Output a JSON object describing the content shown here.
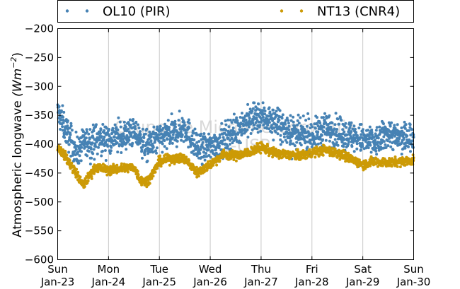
{
  "chart_data": {
    "type": "scatter",
    "ylabel_prefix": "Atmospheric longwave ",
    "ylabel_unit": "(Wm",
    "ylabel_exp": "−2",
    "ylabel_close": ")",
    "ylim": [
      -600,
      -200
    ],
    "yticks": [
      -200,
      -250,
      -300,
      -350,
      -400,
      -450,
      -500,
      -550,
      -600
    ],
    "ytick_labels": [
      "−200",
      "−250",
      "−300",
      "−350",
      "−400",
      "−450",
      "−500",
      "−550",
      "−600"
    ],
    "xlim": [
      "2011-01-23",
      "2011-01-30"
    ],
    "xticks": [
      {
        "day": "Sun",
        "date": "Jan-23"
      },
      {
        "day": "Mon",
        "date": "Jan-24"
      },
      {
        "day": "Tue",
        "date": "Jan-25"
      },
      {
        "day": "Wed",
        "date": "Jan-26"
      },
      {
        "day": "Thu",
        "date": "Jan-27"
      },
      {
        "day": "Fri",
        "date": "Jan-28"
      },
      {
        "day": "Sat",
        "date": "Jan-29"
      },
      {
        "day": "Sun",
        "date": "Jan-30"
      }
    ],
    "grid": "vertical",
    "legend": "top",
    "watermark": [
      "Grupo de Micrometeorologia",
      "IAG-USP"
    ],
    "series": [
      {
        "name": "OL10 (PIR)",
        "color": "#4682b4",
        "spread": 13,
        "profile": [
          {
            "x": "2011-01-23 00:00",
            "y": -345
          },
          {
            "x": "2011-01-23 03:00",
            "y": -368
          },
          {
            "x": "2011-01-23 06:00",
            "y": -392
          },
          {
            "x": "2011-01-23 09:00",
            "y": -412
          },
          {
            "x": "2011-01-23 12:00",
            "y": -400
          },
          {
            "x": "2011-01-23 18:00",
            "y": -392
          },
          {
            "x": "2011-01-24 00:00",
            "y": -390
          },
          {
            "x": "2011-01-24 06:00",
            "y": -388
          },
          {
            "x": "2011-01-24 12:00",
            "y": -380
          },
          {
            "x": "2011-01-24 18:00",
            "y": -405
          },
          {
            "x": "2011-01-25 00:00",
            "y": -390
          },
          {
            "x": "2011-01-25 06:00",
            "y": -382
          },
          {
            "x": "2011-01-25 12:00",
            "y": -370
          },
          {
            "x": "2011-01-25 18:00",
            "y": -410
          },
          {
            "x": "2011-01-26 00:00",
            "y": -405
          },
          {
            "x": "2011-01-26 06:00",
            "y": -392
          },
          {
            "x": "2011-01-26 12:00",
            "y": -375
          },
          {
            "x": "2011-01-26 18:00",
            "y": -360
          },
          {
            "x": "2011-01-27 00:00",
            "y": -352
          },
          {
            "x": "2011-01-27 06:00",
            "y": -360
          },
          {
            "x": "2011-01-27 12:00",
            "y": -375
          },
          {
            "x": "2011-01-27 18:00",
            "y": -385
          },
          {
            "x": "2011-01-28 00:00",
            "y": -385
          },
          {
            "x": "2011-01-28 06:00",
            "y": -372
          },
          {
            "x": "2011-01-28 12:00",
            "y": -378
          },
          {
            "x": "2011-01-28 18:00",
            "y": -385
          },
          {
            "x": "2011-01-29 00:00",
            "y": -392
          },
          {
            "x": "2011-01-29 06:00",
            "y": -398
          },
          {
            "x": "2011-01-29 12:00",
            "y": -380
          },
          {
            "x": "2011-01-29 18:00",
            "y": -392
          },
          {
            "x": "2011-01-30 00:00",
            "y": -385
          }
        ]
      },
      {
        "name": "NT13 (CNR4)",
        "color": "#cc9a06",
        "spread": 4,
        "profile": [
          {
            "x": "2011-01-23 00:00",
            "y": -405
          },
          {
            "x": "2011-01-23 03:00",
            "y": -418
          },
          {
            "x": "2011-01-23 06:00",
            "y": -435
          },
          {
            "x": "2011-01-23 09:00",
            "y": -452
          },
          {
            "x": "2011-01-23 12:00",
            "y": -472
          },
          {
            "x": "2011-01-23 15:00",
            "y": -455
          },
          {
            "x": "2011-01-23 18:00",
            "y": -440
          },
          {
            "x": "2011-01-24 00:00",
            "y": -445
          },
          {
            "x": "2011-01-24 06:00",
            "y": -442
          },
          {
            "x": "2011-01-24 12:00",
            "y": -440
          },
          {
            "x": "2011-01-24 15:00",
            "y": -462
          },
          {
            "x": "2011-01-24 18:00",
            "y": -465
          },
          {
            "x": "2011-01-24 21:00",
            "y": -450
          },
          {
            "x": "2011-01-25 00:00",
            "y": -430
          },
          {
            "x": "2011-01-25 06:00",
            "y": -425
          },
          {
            "x": "2011-01-25 12:00",
            "y": -425
          },
          {
            "x": "2011-01-25 18:00",
            "y": -450
          },
          {
            "x": "2011-01-26 00:00",
            "y": -435
          },
          {
            "x": "2011-01-26 06:00",
            "y": -418
          },
          {
            "x": "2011-01-26 12:00",
            "y": -420
          },
          {
            "x": "2011-01-26 18:00",
            "y": -415
          },
          {
            "x": "2011-01-27 00:00",
            "y": -405
          },
          {
            "x": "2011-01-27 06:00",
            "y": -415
          },
          {
            "x": "2011-01-27 12:00",
            "y": -418
          },
          {
            "x": "2011-01-27 18:00",
            "y": -420
          },
          {
            "x": "2011-01-28 00:00",
            "y": -415
          },
          {
            "x": "2011-01-28 06:00",
            "y": -410
          },
          {
            "x": "2011-01-28 12:00",
            "y": -415
          },
          {
            "x": "2011-01-28 18:00",
            "y": -425
          },
          {
            "x": "2011-01-29 00:00",
            "y": -435
          },
          {
            "x": "2011-01-29 06:00",
            "y": -430
          },
          {
            "x": "2011-01-29 12:00",
            "y": -432
          },
          {
            "x": "2011-01-29 18:00",
            "y": -430
          },
          {
            "x": "2011-01-30 00:00",
            "y": -428
          }
        ]
      }
    ]
  }
}
